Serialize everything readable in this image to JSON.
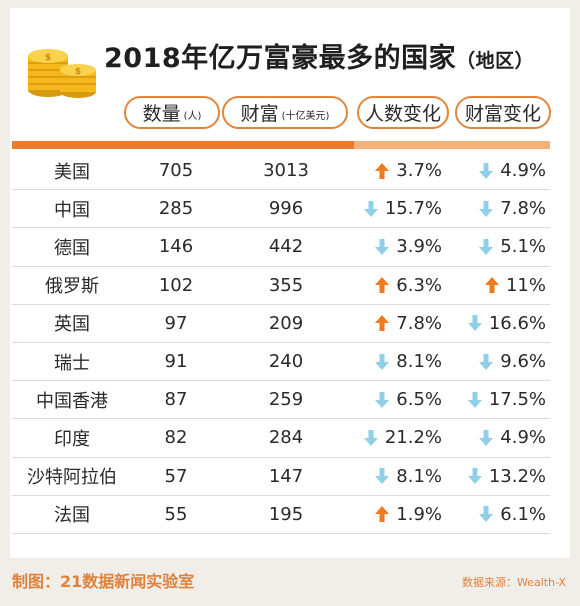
{
  "title": {
    "main": "2018年亿万富豪最多的国家",
    "sub": "（地区）"
  },
  "headers": {
    "count_label": "数量",
    "count_unit": "(人)",
    "wealth_label": "财富",
    "wealth_unit": "(十亿美元)",
    "people_change": "人数变化",
    "wealth_change": "财富变化"
  },
  "colors": {
    "accent": "#e97c2d",
    "up": "#f07a1e",
    "down": "#8fd0e8"
  },
  "rows": [
    {
      "name": "美国",
      "count": "705",
      "wealth": "3013",
      "pch_dir": "up",
      "pch": "3.7%",
      "wch_dir": "down",
      "wch": "4.9%"
    },
    {
      "name": "中国",
      "count": "285",
      "wealth": "996",
      "pch_dir": "down",
      "pch": "15.7%",
      "wch_dir": "down",
      "wch": "7.8%"
    },
    {
      "name": "德国",
      "count": "146",
      "wealth": "442",
      "pch_dir": "down",
      "pch": "3.9%",
      "wch_dir": "down",
      "wch": "5.1%"
    },
    {
      "name": "俄罗斯",
      "count": "102",
      "wealth": "355",
      "pch_dir": "up",
      "pch": "6.3%",
      "wch_dir": "up",
      "wch": "11%"
    },
    {
      "name": "英国",
      "count": "97",
      "wealth": "209",
      "pch_dir": "up",
      "pch": "7.8%",
      "wch_dir": "down",
      "wch": "16.6%"
    },
    {
      "name": "瑞士",
      "count": "91",
      "wealth": "240",
      "pch_dir": "down",
      "pch": "8.1%",
      "wch_dir": "down",
      "wch": "9.6%"
    },
    {
      "name": "中国香港",
      "count": "87",
      "wealth": "259",
      "pch_dir": "down",
      "pch": "6.5%",
      "wch_dir": "down",
      "wch": "17.5%"
    },
    {
      "name": "印度",
      "count": "82",
      "wealth": "284",
      "pch_dir": "down",
      "pch": "21.2%",
      "wch_dir": "down",
      "wch": "4.9%"
    },
    {
      "name": "沙特阿拉伯",
      "count": "57",
      "wealth": "147",
      "pch_dir": "down",
      "pch": "8.1%",
      "wch_dir": "down",
      "wch": "13.2%"
    },
    {
      "name": "法国",
      "count": "55",
      "wealth": "195",
      "pch_dir": "up",
      "pch": "1.9%",
      "wch_dir": "down",
      "wch": "6.1%"
    }
  ],
  "footer": {
    "credit": "制图：21数据新闻实验室",
    "source": "数据来源：Wealth-X"
  },
  "icons": {
    "logo": "gold-coins-icon",
    "up": "arrow-up-icon",
    "down": "arrow-down-icon"
  }
}
